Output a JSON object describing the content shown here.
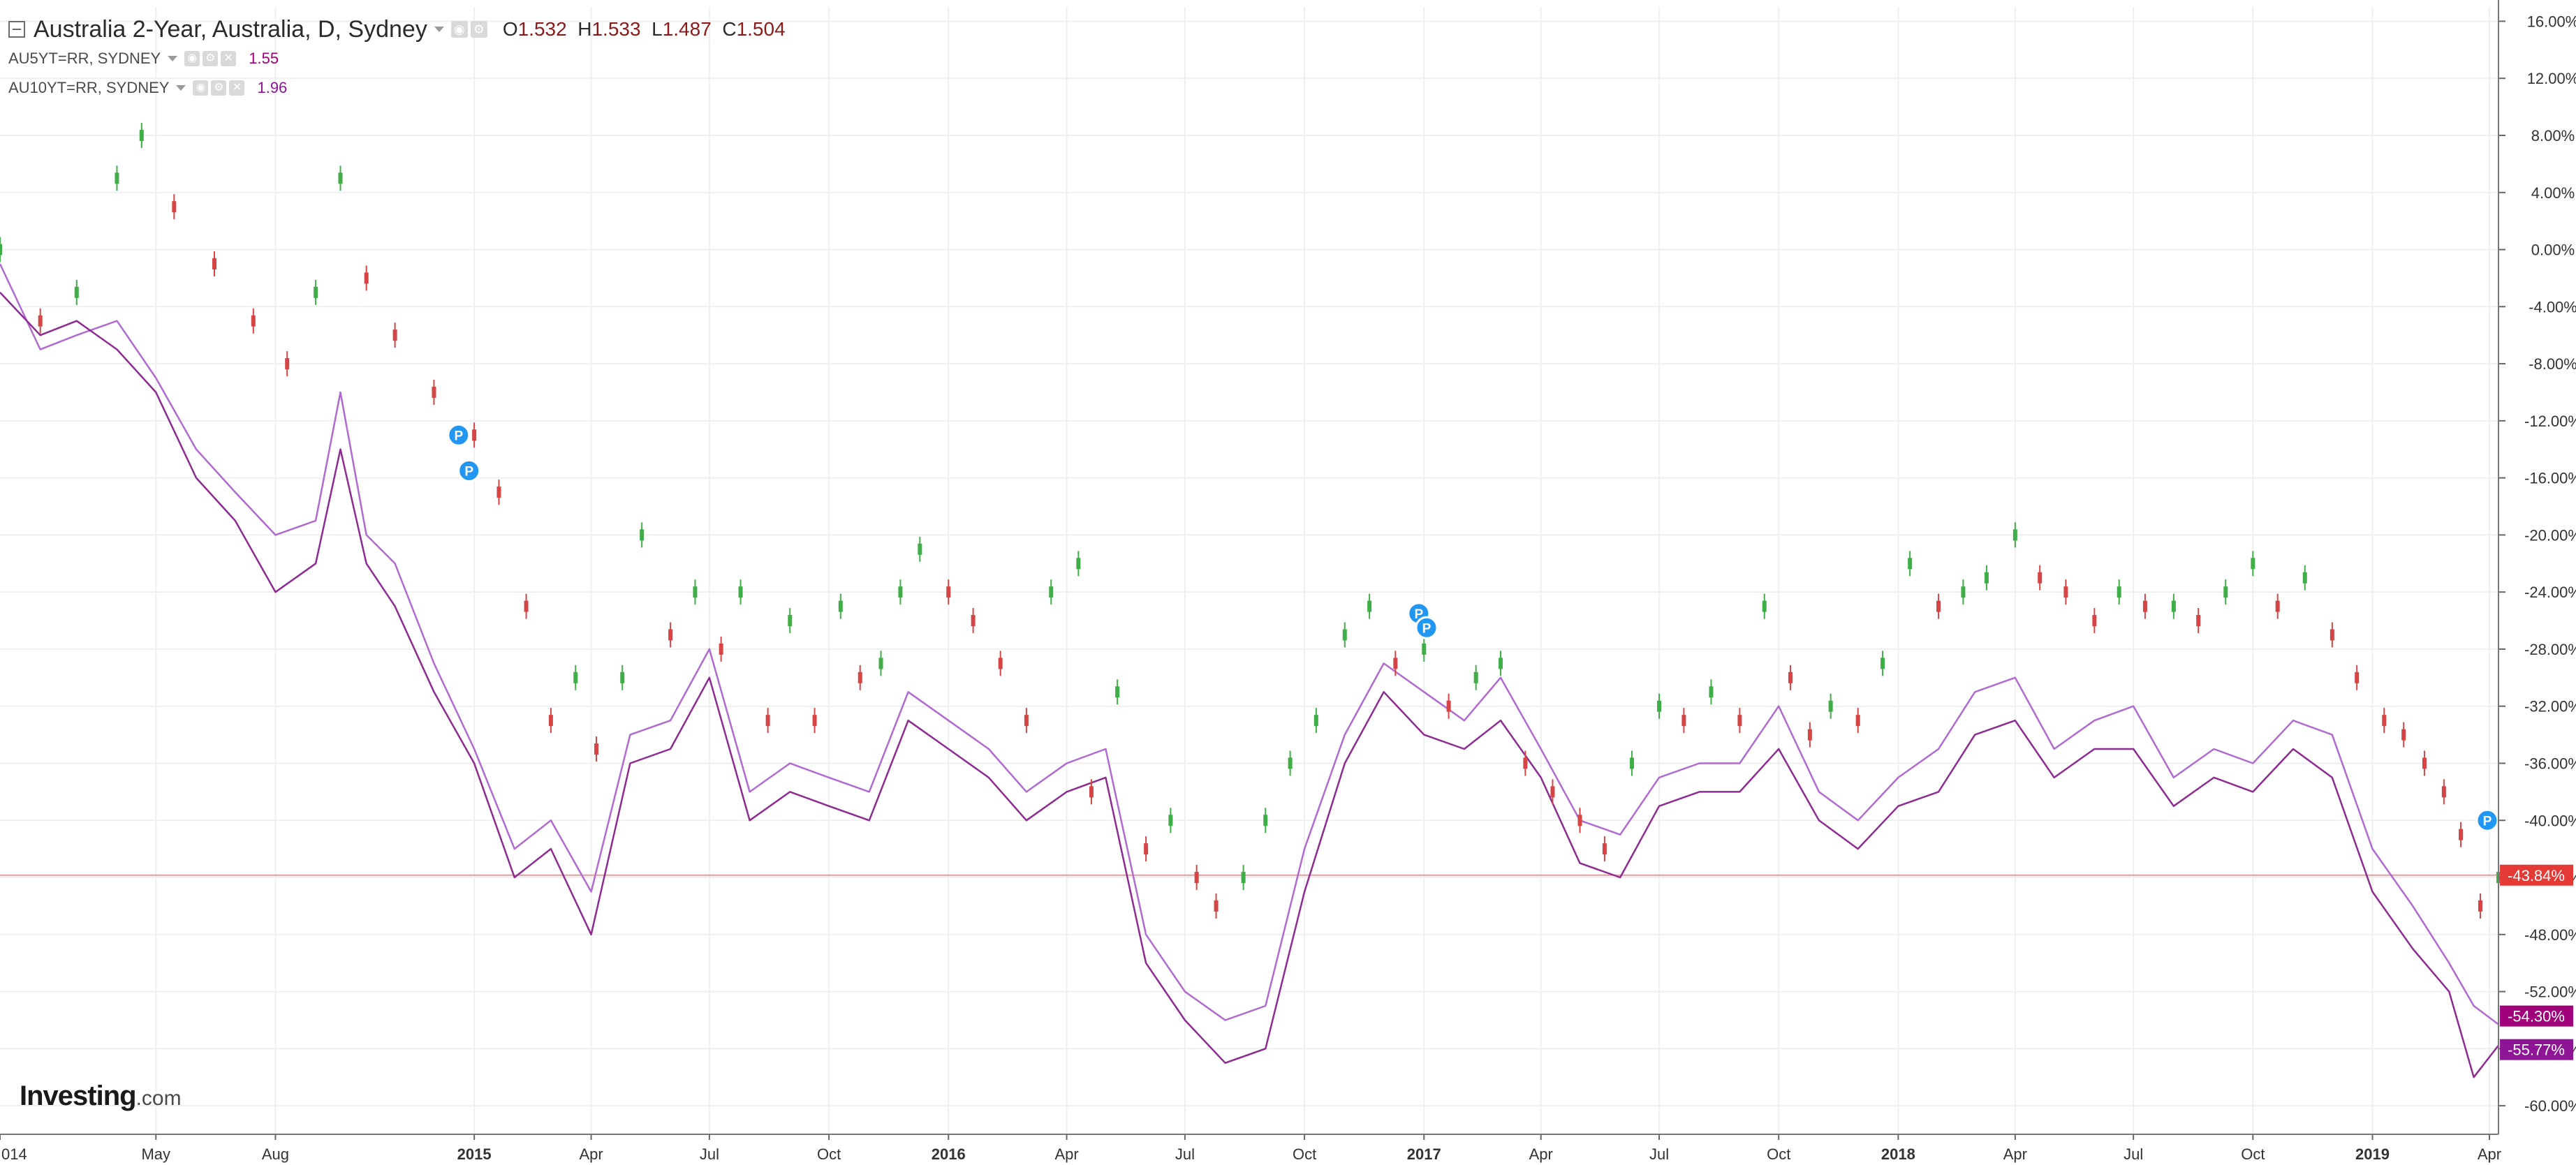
{
  "header": {
    "title": "Australia 2-Year, Australia, D, Sydney",
    "ohlc": {
      "o_label": "O",
      "o_value": "1.532",
      "h_label": "H",
      "h_value": "1.533",
      "l_label": "L",
      "l_value": "1.487",
      "c_label": "C",
      "c_value": "1.504"
    },
    "series": [
      {
        "symbol": "AU5YT=RR, SYDNEY",
        "value": "1.55"
      },
      {
        "symbol": "AU10YT=RR, SYDNEY",
        "value": "1.96"
      }
    ]
  },
  "logo": {
    "main": "Investing",
    "suffix": ".com"
  },
  "colors": {
    "up": "#3fae46",
    "down": "#d64545",
    "au5y": "#b06ad1",
    "au10y": "#8e2b93",
    "crosshair": "#ef9a9a",
    "price_tag": "#e53935",
    "tag_5y": "#a0007a",
    "tag_10y": "#8e1596",
    "event_marker": "#2196f3"
  },
  "chart_data": {
    "type": "line",
    "x_axis": {
      "ticks": [
        "014",
        "May",
        "Aug",
        "2015",
        "Apr",
        "Jul",
        "Oct",
        "2016",
        "Apr",
        "Jul",
        "Oct",
        "2017",
        "Apr",
        "Jul",
        "Oct",
        "2018",
        "Apr",
        "Jul",
        "Oct",
        "2019",
        "Apr"
      ],
      "tick_dates": [
        "2014-01-01",
        "2014-05-01",
        "2014-08-01",
        "2015-01-01",
        "2015-04-01",
        "2015-07-01",
        "2015-10-01",
        "2016-01-01",
        "2016-04-01",
        "2016-07-01",
        "2016-10-01",
        "2017-01-01",
        "2017-04-01",
        "2017-07-01",
        "2017-10-01",
        "2018-01-01",
        "2018-04-01",
        "2018-07-01",
        "2018-10-01",
        "2019-01-01",
        "2019-04-01"
      ],
      "range": [
        "2014-01-01",
        "2019-04-08"
      ]
    },
    "y_axis": {
      "unit": "%",
      "ylim": [
        -62,
        17
      ],
      "ticks": [
        "16.00%",
        "12.00%",
        "8.00%",
        "4.00%",
        "0.00%",
        "-4.00%",
        "-8.00%",
        "-12.00%",
        "-16.00%",
        "-20.00%",
        "-24.00%",
        "-28.00%",
        "-32.00%",
        "-36.00%",
        "-40.00%",
        "-44.00%",
        "-48.00%",
        "-52.00%",
        "-56.00%",
        "-60.00%"
      ],
      "tick_values": [
        16,
        12,
        8,
        4,
        0,
        -4,
        -8,
        -12,
        -16,
        -20,
        -24,
        -28,
        -32,
        -36,
        -40,
        -44,
        -48,
        -52,
        -56,
        -60
      ]
    },
    "grid": true,
    "series": [
      {
        "name": "Australia 2-Year",
        "style": "candlestick",
        "x": [
          "2014-01-01",
          "2014-02-01",
          "2014-03-01",
          "2014-04-01",
          "2014-04-20",
          "2014-05-15",
          "2014-06-15",
          "2014-07-15",
          "2014-08-10",
          "2014-09-01",
          "2014-09-20",
          "2014-10-10",
          "2014-11-01",
          "2014-12-01",
          "2015-01-01",
          "2015-01-20",
          "2015-02-10",
          "2015-03-01",
          "2015-03-20",
          "2015-04-05",
          "2015-04-25",
          "2015-05-10",
          "2015-06-01",
          "2015-06-20",
          "2015-07-10",
          "2015-07-25",
          "2015-08-15",
          "2015-09-01",
          "2015-09-20",
          "2015-10-10",
          "2015-10-25",
          "2015-11-10",
          "2015-11-25",
          "2015-12-10",
          "2016-01-01",
          "2016-01-20",
          "2016-02-10",
          "2016-03-01",
          "2016-03-20",
          "2016-04-10",
          "2016-04-20",
          "2016-05-10",
          "2016-06-01",
          "2016-06-20",
          "2016-07-10",
          "2016-07-25",
          "2016-08-15",
          "2016-09-01",
          "2016-09-20",
          "2016-10-10",
          "2016-11-01",
          "2016-11-20",
          "2016-12-10",
          "2017-01-01",
          "2017-01-20",
          "2017-02-10",
          "2017-03-01",
          "2017-03-20",
          "2017-04-10",
          "2017-05-01",
          "2017-05-20",
          "2017-06-10",
          "2017-07-01",
          "2017-07-20",
          "2017-08-10",
          "2017-09-01",
          "2017-09-20",
          "2017-10-10",
          "2017-10-25",
          "2017-11-10",
          "2017-12-01",
          "2017-12-20",
          "2018-01-10",
          "2018-02-01",
          "2018-02-20",
          "2018-03-10",
          "2018-04-01",
          "2018-04-20",
          "2018-05-10",
          "2018-06-01",
          "2018-06-20",
          "2018-07-10",
          "2018-08-01",
          "2018-08-20",
          "2018-09-10",
          "2018-10-01",
          "2018-10-20",
          "2018-11-10",
          "2018-12-01",
          "2018-12-20",
          "2019-01-10",
          "2019-01-25",
          "2019-02-10",
          "2019-02-25",
          "2019-03-10",
          "2019-03-25",
          "2019-04-08"
        ],
        "values": [
          0,
          -5,
          -3,
          5,
          8,
          3,
          -1,
          -5,
          -8,
          -3,
          5,
          -2,
          -6,
          -10,
          -13,
          -17,
          -25,
          -33,
          -30,
          -35,
          -30,
          -20,
          -27,
          -24,
          -28,
          -24,
          -33,
          -26,
          -33,
          -25,
          -30,
          -29,
          -24,
          -21,
          -24,
          -26,
          -29,
          -33,
          -24,
          -22,
          -38,
          -31,
          -42,
          -40,
          -44,
          -46,
          -44,
          -40,
          -36,
          -33,
          -27,
          -25,
          -29,
          -28,
          -32,
          -30,
          -29,
          -36,
          -38,
          -40,
          -42,
          -36,
          -32,
          -33,
          -31,
          -33,
          -25,
          -30,
          -34,
          -32,
          -33,
          -29,
          -22,
          -25,
          -24,
          -23,
          -20,
          -23,
          -24,
          -26,
          -24,
          -25,
          -25,
          -26,
          -24,
          -22,
          -25,
          -23,
          -27,
          -30,
          -33,
          -34,
          -36,
          -38,
          -41,
          -46,
          -44
        ]
      },
      {
        "name": "AU5YT=RR, SYDNEY",
        "style": "line",
        "x": [
          "2014-01-01",
          "2014-02-01",
          "2014-03-01",
          "2014-04-01",
          "2014-05-01",
          "2014-06-01",
          "2014-07-01",
          "2014-08-01",
          "2014-09-01",
          "2014-09-20",
          "2014-10-10",
          "2014-11-01",
          "2014-12-01",
          "2015-01-01",
          "2015-02-01",
          "2015-03-01",
          "2015-04-01",
          "2015-05-01",
          "2015-06-01",
          "2015-07-01",
          "2015-08-01",
          "2015-09-01",
          "2015-10-01",
          "2015-11-01",
          "2015-12-01",
          "2016-01-01",
          "2016-02-01",
          "2016-03-01",
          "2016-04-01",
          "2016-05-01",
          "2016-06-01",
          "2016-07-01",
          "2016-08-01",
          "2016-09-01",
          "2016-10-01",
          "2016-11-01",
          "2016-12-01",
          "2017-01-01",
          "2017-02-01",
          "2017-03-01",
          "2017-04-01",
          "2017-05-01",
          "2017-06-01",
          "2017-07-01",
          "2017-08-01",
          "2017-09-01",
          "2017-10-01",
          "2017-11-01",
          "2017-12-01",
          "2018-01-01",
          "2018-02-01",
          "2018-03-01",
          "2018-04-01",
          "2018-05-01",
          "2018-06-01",
          "2018-07-01",
          "2018-08-01",
          "2018-09-01",
          "2018-10-01",
          "2018-11-01",
          "2018-12-01",
          "2019-01-01",
          "2019-02-01",
          "2019-03-01",
          "2019-03-20",
          "2019-04-08"
        ],
        "values": [
          -1,
          -7,
          -6,
          -5,
          -9,
          -14,
          -17,
          -20,
          -19,
          -10,
          -20,
          -22,
          -29,
          -35,
          -42,
          -40,
          -45,
          -34,
          -33,
          -28,
          -38,
          -36,
          -37,
          -38,
          -31,
          -33,
          -35,
          -38,
          -36,
          -35,
          -48,
          -52,
          -54,
          -53,
          -42,
          -34,
          -29,
          -31,
          -33,
          -30,
          -35,
          -40,
          -41,
          -37,
          -36,
          -36,
          -32,
          -38,
          -40,
          -37,
          -35,
          -31,
          -30,
          -35,
          -33,
          -32,
          -37,
          -35,
          -36,
          -33,
          -34,
          -42,
          -46,
          -50,
          -53,
          -54.3
        ]
      },
      {
        "name": "AU10YT=RR, SYDNEY",
        "style": "line",
        "x": [
          "2014-01-01",
          "2014-02-01",
          "2014-03-01",
          "2014-04-01",
          "2014-05-01",
          "2014-06-01",
          "2014-07-01",
          "2014-08-01",
          "2014-09-01",
          "2014-09-20",
          "2014-10-10",
          "2014-11-01",
          "2014-12-01",
          "2015-01-01",
          "2015-02-01",
          "2015-03-01",
          "2015-04-01",
          "2015-05-01",
          "2015-06-01",
          "2015-07-01",
          "2015-08-01",
          "2015-09-01",
          "2015-10-01",
          "2015-11-01",
          "2015-12-01",
          "2016-01-01",
          "2016-02-01",
          "2016-03-01",
          "2016-04-01",
          "2016-05-01",
          "2016-06-01",
          "2016-07-01",
          "2016-08-01",
          "2016-09-01",
          "2016-10-01",
          "2016-11-01",
          "2016-12-01",
          "2017-01-01",
          "2017-02-01",
          "2017-03-01",
          "2017-04-01",
          "2017-05-01",
          "2017-06-01",
          "2017-07-01",
          "2017-08-01",
          "2017-09-01",
          "2017-10-01",
          "2017-11-01",
          "2017-12-01",
          "2018-01-01",
          "2018-02-01",
          "2018-03-01",
          "2018-04-01",
          "2018-05-01",
          "2018-06-01",
          "2018-07-01",
          "2018-08-01",
          "2018-09-01",
          "2018-10-01",
          "2018-11-01",
          "2018-12-01",
          "2019-01-01",
          "2019-02-01",
          "2019-03-01",
          "2019-03-20",
          "2019-04-08"
        ],
        "values": [
          -3,
          -6,
          -5,
          -7,
          -10,
          -16,
          -19,
          -24,
          -22,
          -14,
          -22,
          -25,
          -31,
          -36,
          -44,
          -42,
          -48,
          -36,
          -35,
          -30,
          -40,
          -38,
          -39,
          -40,
          -33,
          -35,
          -37,
          -40,
          -38,
          -37,
          -50,
          -54,
          -57,
          -56,
          -45,
          -36,
          -31,
          -34,
          -35,
          -33,
          -37,
          -43,
          -44,
          -39,
          -38,
          -38,
          -35,
          -40,
          -42,
          -39,
          -38,
          -34,
          -33,
          -37,
          -35,
          -35,
          -39,
          -37,
          -38,
          -35,
          -37,
          -45,
          -49,
          -52,
          -58,
          -55.77
        ]
      }
    ],
    "price_labels": [
      {
        "series": "Australia 2-Year",
        "value": -43.84,
        "text": "-43.84%"
      },
      {
        "series": "AU5YT=RR, SYDNEY",
        "value": -54.3,
        "text": "-54.30%"
      },
      {
        "series": "AU10YT=RR, SYDNEY",
        "value": -55.77,
        "text": "-55.77%"
      }
    ],
    "event_markers": [
      {
        "label": "P",
        "x": "2014-12-20",
        "y": -13
      },
      {
        "label": "P",
        "x": "2014-12-28",
        "y": -15.5
      },
      {
        "label": "P",
        "x": "2016-12-28",
        "y": -25.5
      },
      {
        "label": "P",
        "x": "2017-01-03",
        "y": -26.5
      },
      {
        "label": "P",
        "x": "2019-04-12",
        "y": -40
      }
    ]
  }
}
